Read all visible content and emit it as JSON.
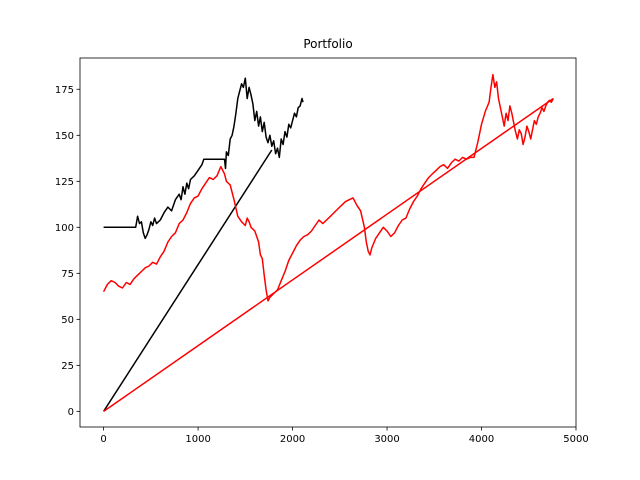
{
  "chart_data": {
    "type": "line",
    "title": "Portfolio",
    "xlabel": "",
    "ylabel": "",
    "xlim": [
      -250,
      5000
    ],
    "ylim": [
      -8.5,
      192
    ],
    "xticks": [
      0,
      1000,
      2000,
      3000,
      4000,
      5000
    ],
    "xtick_labels": [
      "0",
      "1000",
      "2000",
      "3000",
      "4000",
      "5000"
    ],
    "yticks": [
      0,
      25,
      50,
      75,
      100,
      125,
      150,
      175
    ],
    "ytick_labels": [
      "0",
      "25",
      "50",
      "75",
      "100",
      "125",
      "150",
      "175"
    ],
    "grid": false,
    "legend": "none",
    "series": [
      {
        "color": "#000000",
        "values": [
          [
            0,
            100
          ],
          [
            340,
            100
          ],
          [
            360,
            106
          ],
          [
            380,
            102
          ],
          [
            400,
            103
          ],
          [
            420,
            97
          ],
          [
            440,
            94
          ],
          [
            460,
            96
          ],
          [
            480,
            99
          ],
          [
            500,
            103
          ],
          [
            520,
            101
          ],
          [
            540,
            105
          ],
          [
            560,
            102
          ],
          [
            600,
            104
          ],
          [
            640,
            108
          ],
          [
            680,
            111
          ],
          [
            720,
            109
          ],
          [
            760,
            115
          ],
          [
            800,
            118
          ],
          [
            820,
            115
          ],
          [
            840,
            122
          ],
          [
            860,
            118
          ],
          [
            880,
            124
          ],
          [
            900,
            121
          ],
          [
            920,
            126
          ],
          [
            960,
            128
          ],
          [
            1000,
            131
          ],
          [
            1040,
            134
          ],
          [
            1060,
            137
          ],
          [
            1100,
            137
          ],
          [
            1280,
            137
          ],
          [
            1290,
            132
          ],
          [
            1300,
            141
          ],
          [
            1320,
            139
          ],
          [
            1340,
            148
          ],
          [
            1360,
            150
          ],
          [
            1380,
            155
          ],
          [
            1400,
            162
          ],
          [
            1420,
            170
          ],
          [
            1440,
            174
          ],
          [
            1460,
            178
          ],
          [
            1480,
            176
          ],
          [
            1500,
            181
          ],
          [
            1520,
            170
          ],
          [
            1540,
            176
          ],
          [
            1560,
            172
          ],
          [
            1580,
            167
          ],
          [
            1600,
            158
          ],
          [
            1620,
            163
          ],
          [
            1640,
            155
          ],
          [
            1660,
            160
          ],
          [
            1680,
            152
          ],
          [
            1700,
            157
          ],
          [
            1720,
            149
          ],
          [
            1740,
            146
          ],
          [
            1760,
            150
          ],
          [
            1780,
            144
          ],
          [
            1800,
            147
          ],
          [
            1820,
            140
          ],
          [
            1840,
            143
          ],
          [
            1860,
            138
          ],
          [
            1880,
            148
          ],
          [
            1900,
            145
          ],
          [
            1920,
            152
          ],
          [
            1940,
            149
          ],
          [
            1960,
            156
          ],
          [
            1980,
            154
          ],
          [
            2000,
            158
          ],
          [
            2020,
            162
          ],
          [
            2040,
            160
          ],
          [
            2060,
            165
          ],
          [
            2080,
            166
          ],
          [
            2100,
            170
          ],
          [
            2110,
            168
          ]
        ]
      },
      {
        "color": "#000000",
        "values": [
          [
            0,
            0
          ],
          [
            1780,
            142
          ]
        ]
      },
      {
        "color": "#ff0000",
        "values": [
          [
            0,
            65
          ],
          [
            40,
            69
          ],
          [
            80,
            71
          ],
          [
            120,
            70
          ],
          [
            160,
            68
          ],
          [
            200,
            67
          ],
          [
            240,
            70
          ],
          [
            280,
            69
          ],
          [
            320,
            72
          ],
          [
            360,
            74
          ],
          [
            400,
            76
          ],
          [
            440,
            78
          ],
          [
            480,
            79
          ],
          [
            520,
            81
          ],
          [
            560,
            80
          ],
          [
            600,
            84
          ],
          [
            640,
            87
          ],
          [
            680,
            92
          ],
          [
            720,
            95
          ],
          [
            760,
            97
          ],
          [
            800,
            102
          ],
          [
            840,
            104
          ],
          [
            880,
            108
          ],
          [
            920,
            113
          ],
          [
            960,
            116
          ],
          [
            1000,
            117
          ],
          [
            1040,
            121
          ],
          [
            1080,
            124
          ],
          [
            1120,
            127
          ],
          [
            1160,
            126
          ],
          [
            1200,
            128
          ],
          [
            1240,
            133
          ],
          [
            1280,
            129
          ],
          [
            1300,
            125
          ],
          [
            1340,
            123
          ],
          [
            1380,
            115
          ],
          [
            1420,
            106
          ],
          [
            1460,
            103
          ],
          [
            1500,
            101
          ],
          [
            1520,
            105
          ],
          [
            1540,
            103
          ],
          [
            1560,
            100
          ],
          [
            1600,
            98
          ],
          [
            1640,
            92
          ],
          [
            1660,
            85
          ],
          [
            1680,
            83
          ],
          [
            1700,
            74
          ],
          [
            1720,
            66
          ],
          [
            1740,
            60
          ],
          [
            1760,
            62
          ],
          [
            1800,
            64
          ],
          [
            1840,
            66
          ],
          [
            1880,
            71
          ],
          [
            1920,
            76
          ],
          [
            1960,
            82
          ],
          [
            2000,
            86
          ],
          [
            2040,
            90
          ],
          [
            2080,
            93
          ],
          [
            2120,
            95
          ],
          [
            2160,
            96
          ],
          [
            2200,
            98
          ],
          [
            2240,
            101
          ],
          [
            2280,
            104
          ],
          [
            2320,
            102
          ],
          [
            2360,
            104
          ],
          [
            2400,
            106
          ],
          [
            2440,
            108
          ],
          [
            2480,
            110
          ],
          [
            2520,
            112
          ],
          [
            2560,
            114
          ],
          [
            2600,
            115
          ],
          [
            2640,
            116
          ],
          [
            2680,
            112
          ],
          [
            2720,
            109
          ],
          [
            2760,
            100
          ],
          [
            2780,
            92
          ],
          [
            2800,
            87
          ],
          [
            2820,
            85
          ],
          [
            2840,
            89
          ],
          [
            2880,
            94
          ],
          [
            2920,
            97
          ],
          [
            2960,
            100
          ],
          [
            3000,
            98
          ],
          [
            3040,
            95
          ],
          [
            3080,
            97
          ],
          [
            3120,
            101
          ],
          [
            3160,
            104
          ],
          [
            3200,
            105
          ],
          [
            3240,
            110
          ],
          [
            3280,
            114
          ],
          [
            3320,
            117
          ],
          [
            3360,
            121
          ],
          [
            3400,
            124
          ],
          [
            3440,
            127
          ],
          [
            3480,
            129
          ],
          [
            3520,
            131
          ],
          [
            3560,
            133
          ],
          [
            3600,
            134
          ],
          [
            3640,
            132
          ],
          [
            3680,
            135
          ],
          [
            3720,
            137
          ],
          [
            3760,
            136
          ],
          [
            3800,
            138
          ],
          [
            3840,
            137
          ],
          [
            3880,
            138
          ],
          [
            3920,
            138
          ],
          [
            3960,
            146
          ],
          [
            4000,
            156
          ],
          [
            4040,
            163
          ],
          [
            4080,
            168
          ],
          [
            4100,
            176
          ],
          [
            4120,
            183
          ],
          [
            4140,
            176
          ],
          [
            4160,
            179
          ],
          [
            4180,
            170
          ],
          [
            4200,
            165
          ],
          [
            4220,
            160
          ],
          [
            4240,
            155
          ],
          [
            4260,
            162
          ],
          [
            4280,
            158
          ],
          [
            4300,
            166
          ],
          [
            4320,
            162
          ],
          [
            4340,
            157
          ],
          [
            4360,
            152
          ],
          [
            4380,
            148
          ],
          [
            4400,
            153
          ],
          [
            4420,
            151
          ],
          [
            4440,
            145
          ],
          [
            4460,
            149
          ],
          [
            4480,
            155
          ],
          [
            4500,
            152
          ],
          [
            4520,
            148
          ],
          [
            4540,
            153
          ],
          [
            4560,
            158
          ],
          [
            4580,
            156
          ],
          [
            4600,
            160
          ],
          [
            4620,
            162
          ],
          [
            4640,
            165
          ],
          [
            4660,
            163
          ],
          [
            4680,
            166
          ],
          [
            4700,
            168
          ],
          [
            4720,
            169
          ],
          [
            4740,
            168
          ],
          [
            4760,
            170
          ]
        ]
      },
      {
        "color": "#ff0000",
        "values": [
          [
            0,
            0
          ],
          [
            4760,
            170
          ]
        ]
      }
    ]
  }
}
